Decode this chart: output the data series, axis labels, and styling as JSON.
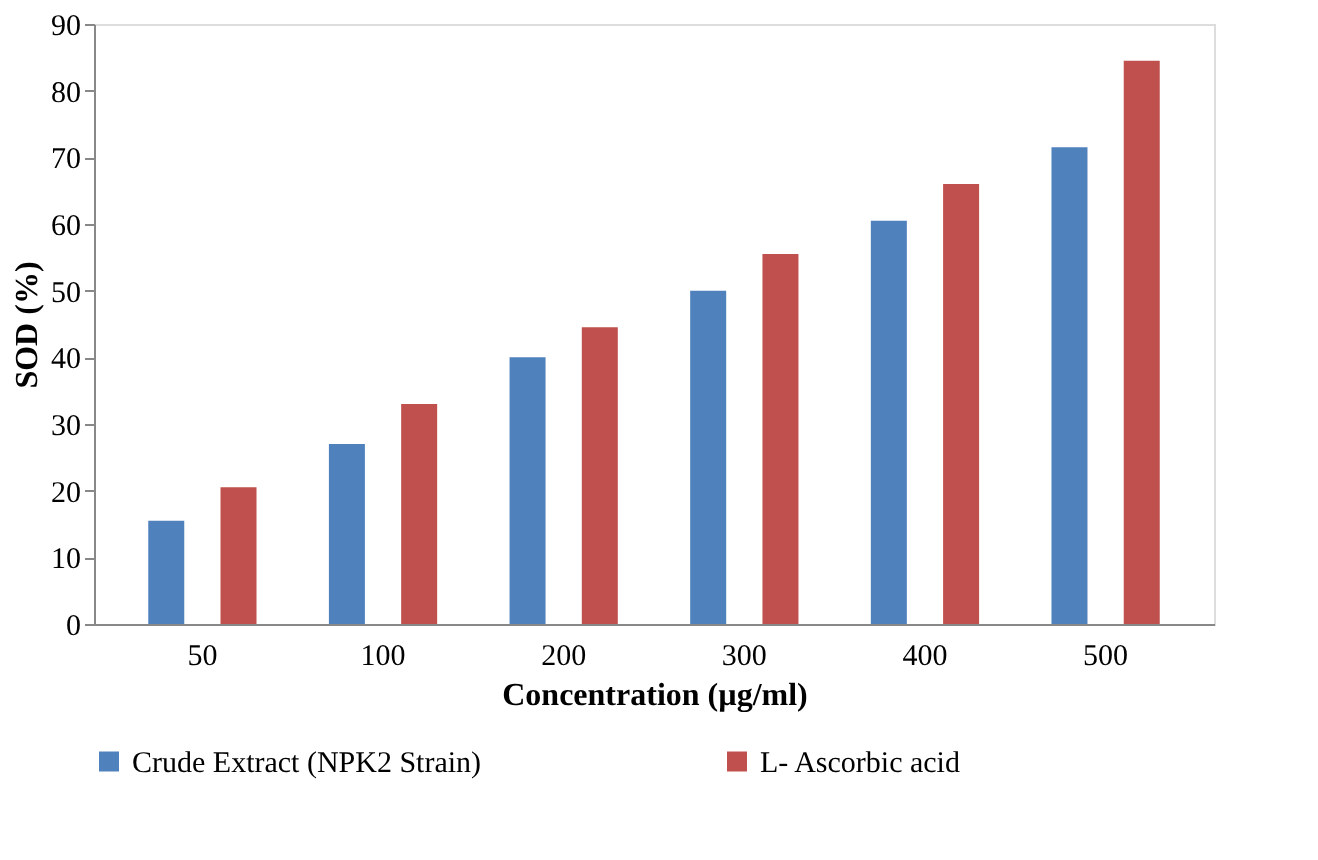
{
  "chart_data": {
    "type": "bar",
    "xlabel": "Concentration (µg/ml)",
    "ylabel": "SOD (%)",
    "categories": [
      "50",
      "100",
      "200",
      "300",
      "400",
      "500"
    ],
    "series": [
      {
        "name": "Crude Extract (NPK2 Strain)",
        "color": "#4f81bd",
        "values": [
          15.5,
          27,
          40,
          50,
          60.5,
          71.5
        ]
      },
      {
        "name": "L- Ascorbic acid",
        "color": "#c0504d",
        "values": [
          20.5,
          33,
          44.5,
          55.5,
          66,
          84.5
        ]
      }
    ],
    "ylim": [
      0,
      90
    ],
    "yticks": [
      0,
      10,
      20,
      30,
      40,
      50,
      60,
      70,
      80,
      90
    ],
    "grid": false,
    "legend": "bottom"
  }
}
